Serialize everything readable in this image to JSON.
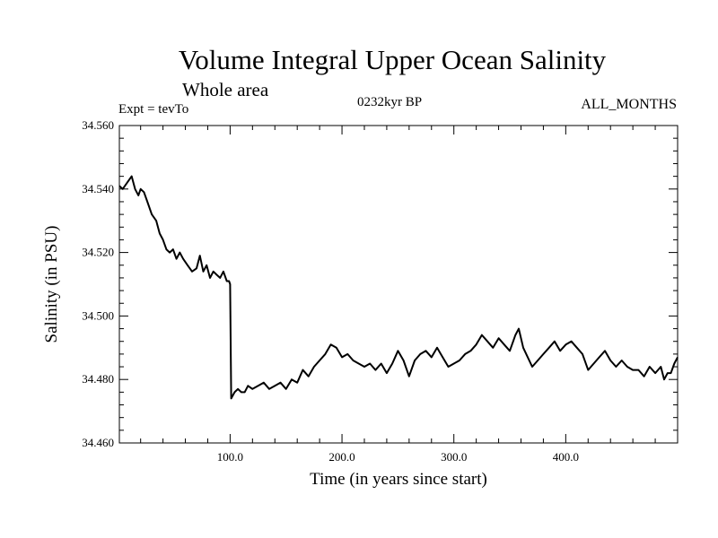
{
  "chart_data": {
    "type": "line",
    "title": "Volume Integral Upper Ocean Salinity",
    "subtitle": "Whole area",
    "annotations": {
      "experiment": "Expt = tevTo",
      "period": "0232kyr BP",
      "months": "ALL_MONTHS"
    },
    "xlabel": "Time (in years since start)",
    "ylabel": "Salinity (in PSU)",
    "xlim": [
      1,
      500
    ],
    "ylim": [
      34.46,
      34.56
    ],
    "x_ticks": [
      {
        "value": 100,
        "label": "100.0"
      },
      {
        "value": 200,
        "label": "200.0"
      },
      {
        "value": 300,
        "label": "300.0"
      },
      {
        "value": 400,
        "label": "400.0"
      }
    ],
    "y_ticks": [
      {
        "value": 34.46,
        "label": "34.460"
      },
      {
        "value": 34.48,
        "label": "34.480"
      },
      {
        "value": 34.5,
        "label": "34.500"
      },
      {
        "value": 34.52,
        "label": "34.520"
      },
      {
        "value": 34.54,
        "label": "34.540"
      },
      {
        "value": 34.56,
        "label": "34.560"
      }
    ],
    "grid": false,
    "line_color": "#000000",
    "series": [
      {
        "x": [
          1,
          4,
          8,
          12,
          15,
          18,
          20,
          23,
          26,
          30,
          34,
          37,
          40,
          43,
          46,
          49,
          52,
          55,
          58,
          62,
          66,
          70,
          73,
          76,
          79,
          82,
          85,
          88,
          91,
          94,
          97,
          99,
          100,
          101,
          104,
          107,
          110,
          113,
          116,
          120,
          125,
          130,
          135,
          140,
          145,
          150,
          155,
          160,
          165,
          170,
          175,
          180,
          185,
          190,
          195,
          200,
          205,
          210,
          215,
          220,
          225,
          230,
          235,
          240,
          245,
          250,
          255,
          260,
          265,
          270,
          275,
          280,
          285,
          290,
          295,
          300,
          305,
          310,
          315,
          320,
          325,
          330,
          335,
          340,
          345,
          350,
          355,
          358,
          362,
          366,
          370,
          375,
          380,
          385,
          390,
          395,
          400,
          405,
          410,
          415,
          420,
          425,
          430,
          435,
          440,
          445,
          450,
          455,
          460,
          465,
          470,
          475,
          480,
          485,
          488,
          491,
          494,
          497,
          500
        ],
        "y": [
          34.541,
          34.54,
          34.542,
          34.544,
          34.54,
          34.538,
          34.54,
          34.539,
          34.536,
          34.532,
          34.53,
          34.526,
          34.524,
          34.521,
          34.52,
          34.521,
          34.518,
          34.52,
          34.518,
          34.516,
          34.514,
          34.515,
          34.519,
          34.514,
          34.516,
          34.512,
          34.514,
          34.513,
          34.512,
          34.514,
          34.511,
          34.511,
          34.51,
          34.474,
          34.476,
          34.477,
          34.476,
          34.476,
          34.478,
          34.477,
          34.478,
          34.479,
          34.477,
          34.478,
          34.479,
          34.477,
          34.48,
          34.479,
          34.483,
          34.481,
          34.484,
          34.486,
          34.488,
          34.491,
          34.49,
          34.487,
          34.488,
          34.486,
          34.485,
          34.484,
          34.485,
          34.483,
          34.485,
          34.482,
          34.485,
          34.489,
          34.486,
          34.481,
          34.486,
          34.488,
          34.489,
          34.487,
          34.49,
          34.487,
          34.484,
          34.485,
          34.486,
          34.488,
          34.489,
          34.491,
          34.494,
          34.492,
          34.49,
          34.493,
          34.491,
          34.489,
          34.494,
          34.496,
          34.49,
          34.487,
          34.484,
          34.486,
          34.488,
          34.49,
          34.492,
          34.489,
          34.491,
          34.492,
          34.49,
          34.488,
          34.483,
          34.485,
          34.487,
          34.489,
          34.486,
          34.484,
          34.486,
          34.484,
          34.483,
          34.483,
          34.481,
          34.484,
          34.482,
          34.484,
          34.48,
          34.482,
          34.482,
          34.485,
          34.487
        ]
      }
    ]
  }
}
